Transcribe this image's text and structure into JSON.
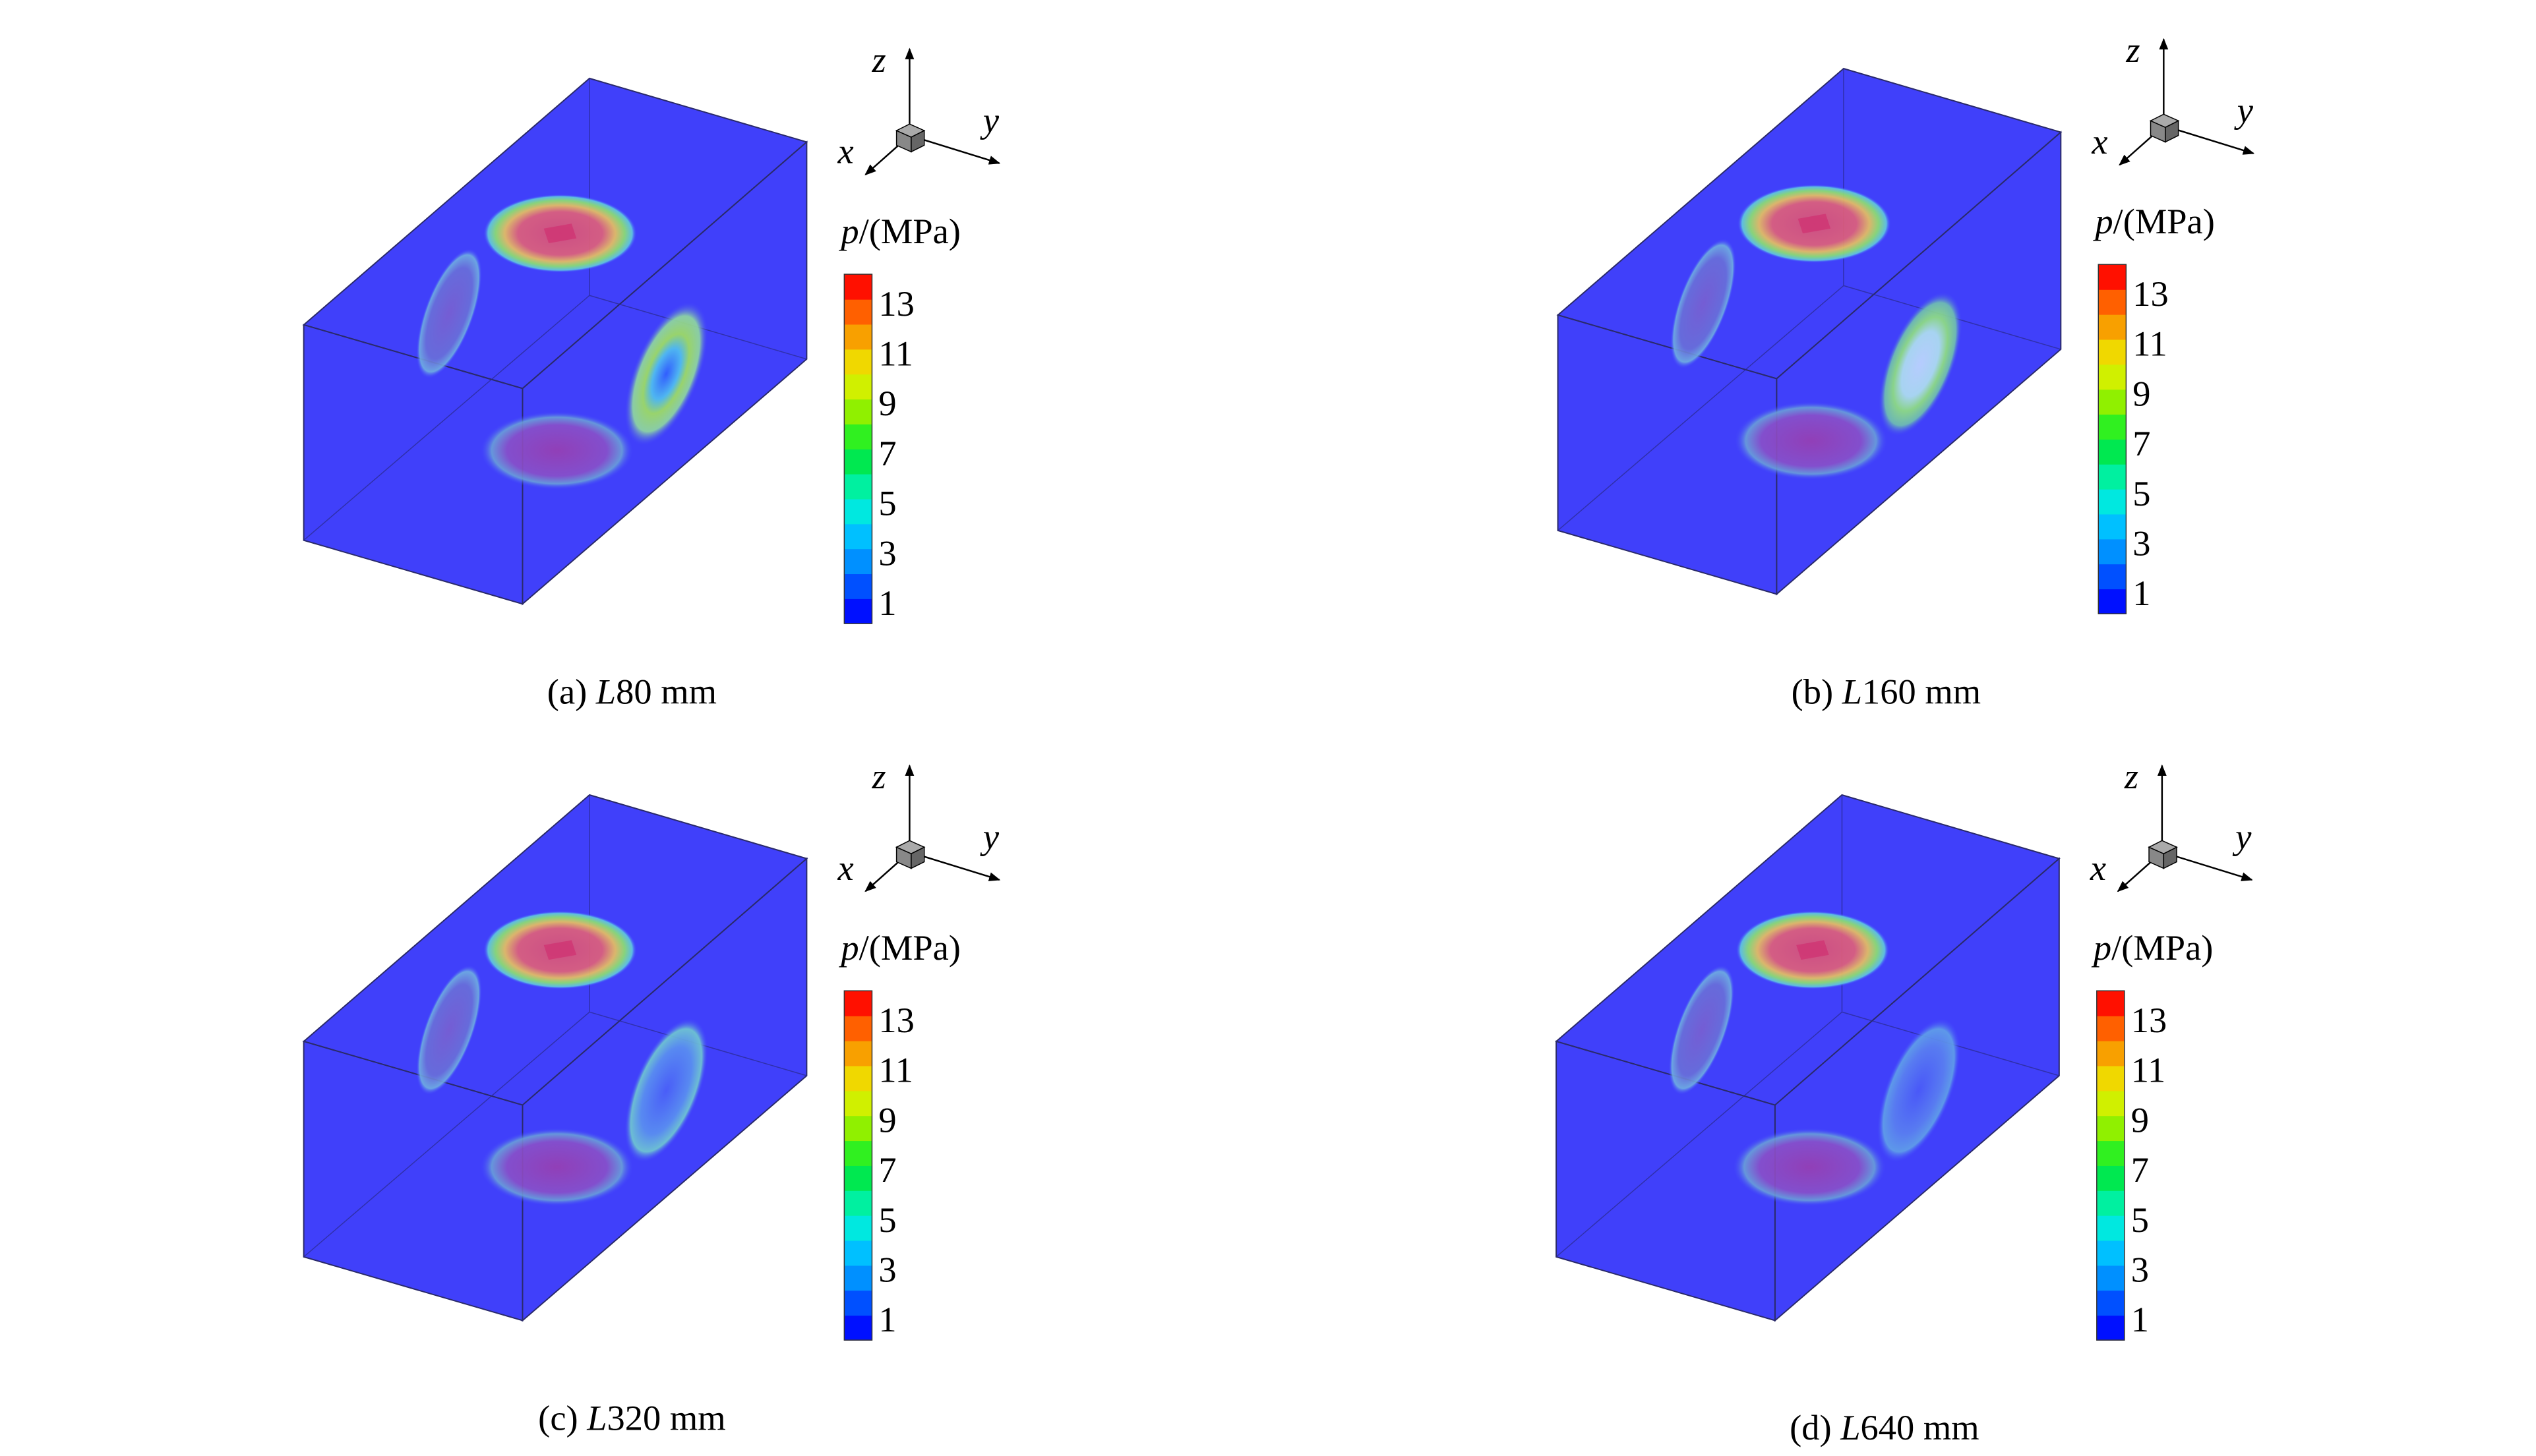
{
  "panels": [
    {
      "caption": {
        "label": "(a)",
        "var": "L",
        "value": "80 mm"
      }
    },
    {
      "caption": {
        "label": "(b)",
        "var": "L",
        "value": "160 mm"
      }
    },
    {
      "caption": {
        "label": "(c)",
        "var": "L",
        "value": "320 mm"
      }
    },
    {
      "caption": {
        "label": "(d)",
        "var": "L",
        "value": "640 mm"
      }
    }
  ],
  "axes": {
    "z": "z",
    "x": "x",
    "y": "y"
  },
  "colorbar": {
    "var": "p",
    "unit": "/(MPa)",
    "ticks": [
      13,
      11,
      9,
      7,
      5,
      3,
      1
    ]
  }
}
